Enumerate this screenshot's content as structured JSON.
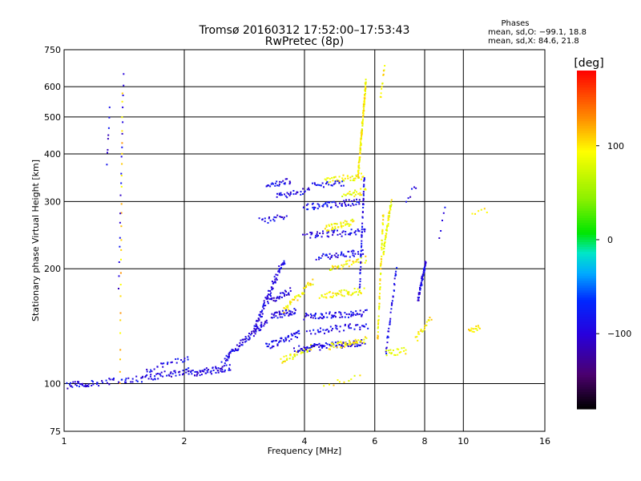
{
  "chart_data": {
    "type": "scatter",
    "title": "Tromsø 20160312 17:52:00–17:53:43",
    "subtitle": "RwPretec (8p)",
    "xlabel": "Frequency [MHz]",
    "ylabel": "Stationary phase Virtual Height [km]",
    "x_scale": "log",
    "y_scale": "log",
    "xlim": [
      1,
      16
    ],
    "ylim": [
      75,
      750
    ],
    "x_ticks": [
      1,
      2,
      4,
      6,
      8,
      10,
      16
    ],
    "x_tick_labels": [
      "1",
      "2",
      "4",
      "6",
      "8",
      "10",
      "16"
    ],
    "y_ticks": [
      75,
      100,
      200,
      300,
      400,
      500,
      600,
      750
    ],
    "y_tick_labels": [
      "75",
      "100",
      "200",
      "300",
      "400",
      "500",
      "600",
      "750"
    ],
    "grid": true,
    "phase_stats": {
      "title": "Phases",
      "o_line": "mean, sd,O: −99.1, 18.8",
      "x_line": "mean, sd,X:  84.6, 21.8"
    },
    "colorbar": {
      "label": "[deg]",
      "range": [
        -180,
        180
      ],
      "ticks": [
        100,
        0,
        -100
      ],
      "tick_labels": [
        "100",
        "0",
        "−100"
      ]
    },
    "clusters": [
      {
        "type": "line",
        "f0": 1.02,
        "f1": 1.15,
        "h0": 99,
        "h1": 100,
        "ph": -95,
        "n": 25
      },
      {
        "type": "line",
        "f0": 1.15,
        "f1": 1.55,
        "h0": 100,
        "h1": 103,
        "ph": -90,
        "n": 35
      },
      {
        "type": "line",
        "f0": 1.55,
        "f1": 2.05,
        "h0": 103,
        "h1": 108,
        "ph": -92,
        "n": 45
      },
      {
        "type": "line",
        "f0": 2.05,
        "f1": 2.6,
        "h0": 106,
        "h1": 110,
        "ph": -95,
        "n": 60
      },
      {
        "type": "line",
        "f0": 1.6,
        "f1": 2.05,
        "h0": 108,
        "h1": 117,
        "ph": -90,
        "n": 25
      },
      {
        "type": "line",
        "f0": 2.5,
        "f1": 3.2,
        "h0": 115,
        "h1": 145,
        "ph": -95,
        "n": 80
      },
      {
        "type": "line",
        "f0": 3.0,
        "f1": 3.55,
        "h0": 140,
        "h1": 210,
        "ph": -95,
        "n": 80
      },
      {
        "type": "line",
        "f0": 3.2,
        "f1": 3.9,
        "h0": 125,
        "h1": 135,
        "ph": -90,
        "n": 50
      },
      {
        "type": "line",
        "f0": 3.3,
        "f1": 3.8,
        "h0": 150,
        "h1": 155,
        "ph": -95,
        "n": 40
      },
      {
        "type": "line",
        "f0": 3.25,
        "f1": 3.7,
        "h0": 165,
        "h1": 175,
        "ph": -98,
        "n": 30
      },
      {
        "type": "line",
        "f0": 3.55,
        "f1": 4.2,
        "h0": 155,
        "h1": 185,
        "ph": 95,
        "n": 40
      },
      {
        "type": "line",
        "f0": 3.5,
        "f1": 4.2,
        "h0": 115,
        "h1": 125,
        "ph": 90,
        "n": 40
      },
      {
        "type": "line",
        "f0": 3.8,
        "f1": 5.6,
        "h0": 123,
        "h1": 128,
        "ph": -95,
        "n": 90
      },
      {
        "type": "line",
        "f0": 4.0,
        "f1": 5.7,
        "h0": 150,
        "h1": 153,
        "ph": -92,
        "n": 70
      },
      {
        "type": "line",
        "f0": 4.4,
        "f1": 5.6,
        "h0": 170,
        "h1": 175,
        "ph": 90,
        "n": 50
      },
      {
        "type": "line",
        "f0": 4.6,
        "f1": 5.7,
        "h0": 125,
        "h1": 130,
        "ph": 95,
        "n": 45
      },
      {
        "type": "line",
        "f0": 4.1,
        "f1": 5.8,
        "h0": 137,
        "h1": 142,
        "ph": -90,
        "n": 45
      },
      {
        "type": "line",
        "f0": 3.2,
        "f1": 3.7,
        "h0": 330,
        "h1": 340,
        "ph": -95,
        "n": 25
      },
      {
        "type": "line",
        "f0": 3.4,
        "f1": 4.1,
        "h0": 310,
        "h1": 320,
        "ph": -92,
        "n": 30
      },
      {
        "type": "line",
        "f0": 3.1,
        "f1": 3.6,
        "h0": 268,
        "h1": 272,
        "ph": -95,
        "n": 20
      },
      {
        "type": "line",
        "f0": 4.0,
        "f1": 5.6,
        "h0": 290,
        "h1": 300,
        "ph": -90,
        "n": 60
      },
      {
        "type": "line",
        "f0": 4.0,
        "f1": 5.7,
        "h0": 245,
        "h1": 250,
        "ph": -95,
        "n": 55
      },
      {
        "type": "line",
        "f0": 4.5,
        "f1": 5.3,
        "h0": 255,
        "h1": 265,
        "ph": 90,
        "n": 40
      },
      {
        "type": "line",
        "f0": 4.3,
        "f1": 5.6,
        "h0": 215,
        "h1": 220,
        "ph": -92,
        "n": 45
      },
      {
        "type": "line",
        "f0": 4.6,
        "f1": 5.7,
        "h0": 200,
        "h1": 212,
        "ph": 95,
        "n": 35
      },
      {
        "type": "line",
        "f0": 4.5,
        "f1": 5.6,
        "h0": 340,
        "h1": 350,
        "ph": 90,
        "n": 40
      },
      {
        "type": "line",
        "f0": 4.2,
        "f1": 5.0,
        "h0": 330,
        "h1": 335,
        "ph": -90,
        "n": 25
      },
      {
        "type": "line",
        "f0": 5.0,
        "f1": 5.7,
        "h0": 310,
        "h1": 320,
        "ph": 88,
        "n": 25
      },
      {
        "type": "line",
        "f0": 5.45,
        "f1": 5.7,
        "h0": 350,
        "h1": 620,
        "ph": 95,
        "n": 120
      },
      {
        "type": "line",
        "f0": 5.5,
        "f1": 5.65,
        "h0": 180,
        "h1": 350,
        "ph": -90,
        "n": 50
      },
      {
        "type": "line",
        "f0": 6.1,
        "f1": 6.3,
        "h0": 130,
        "h1": 280,
        "ph": 95,
        "n": 60
      },
      {
        "type": "line",
        "f0": 6.3,
        "f1": 6.6,
        "h0": 220,
        "h1": 300,
        "ph": 90,
        "n": 50
      },
      {
        "type": "line",
        "f0": 6.4,
        "f1": 6.8,
        "h0": 120,
        "h1": 200,
        "ph": -90,
        "n": 35
      },
      {
        "type": "line",
        "f0": 6.4,
        "f1": 7.2,
        "h0": 120,
        "h1": 122,
        "ph": 90,
        "n": 20
      },
      {
        "type": "line",
        "f0": 7.7,
        "f1": 8.05,
        "h0": 165,
        "h1": 210,
        "ph": -95,
        "n": 60
      },
      {
        "type": "line",
        "f0": 7.6,
        "f1": 8.3,
        "h0": 130,
        "h1": 150,
        "ph": 95,
        "n": 20
      },
      {
        "type": "line",
        "f0": 6.2,
        "f1": 6.35,
        "h0": 560,
        "h1": 680,
        "ph": 100,
        "n": 12
      },
      {
        "type": "line",
        "f0": 1.38,
        "f1": 1.4,
        "h0": 100,
        "h1": 580,
        "ph": 110,
        "n": 25
      },
      {
        "type": "line",
        "f0": 1.37,
        "f1": 1.41,
        "h0": 180,
        "h1": 660,
        "ph": -95,
        "n": 18
      },
      {
        "type": "line",
        "f0": 1.28,
        "f1": 1.3,
        "h0": 380,
        "h1": 520,
        "ph": -95,
        "n": 8
      },
      {
        "type": "line",
        "f0": 10.3,
        "f1": 11.0,
        "h0": 138,
        "h1": 140,
        "ph": 100,
        "n": 15
      },
      {
        "type": "line",
        "f0": 8.7,
        "f1": 9.0,
        "h0": 240,
        "h1": 290,
        "ph": -95,
        "n": 5
      },
      {
        "type": "line",
        "f0": 10.5,
        "f1": 11.5,
        "h0": 275,
        "h1": 285,
        "ph": 100,
        "n": 6
      },
      {
        "type": "line",
        "f0": 7.2,
        "f1": 7.6,
        "h0": 300,
        "h1": 330,
        "ph": -95,
        "n": 6
      },
      {
        "type": "line",
        "f0": 4.5,
        "f1": 5.5,
        "h0": 98,
        "h1": 105,
        "ph": 95,
        "n": 10
      }
    ]
  }
}
